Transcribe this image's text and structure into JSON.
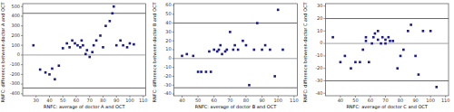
{
  "chart_data": [
    {
      "type": "scatter",
      "xlabel": "RNFC: average of doctor A and OCT",
      "ylabel": "RNFC: difference between doctor A and OCT",
      "xlim": [
        20,
        112
      ],
      "ylim": [
        -420,
        530
      ],
      "xticks": [
        30,
        40,
        50,
        60,
        70,
        80,
        90,
        100,
        110
      ],
      "yticks": [
        -400,
        -300,
        -200,
        -100,
        0,
        100,
        200,
        300,
        400,
        500
      ],
      "hlines": [
        {
          "y": 0,
          "color": "#999999"
        },
        {
          "y": 430,
          "color": "#555555"
        },
        {
          "y": -340,
          "color": "#555555"
        }
      ],
      "series": [
        {
          "color": "#1a1a8c",
          "marker": "square",
          "x": [
            28,
            33,
            37,
            40,
            42,
            44,
            47,
            50,
            53,
            55,
            57,
            59,
            61,
            63,
            64,
            65,
            67,
            68,
            70,
            72,
            73,
            75,
            78,
            80,
            82,
            85,
            87,
            88,
            90,
            93,
            95,
            98,
            100,
            103
          ],
          "values": [
            100,
            -150,
            -180,
            -200,
            -140,
            -250,
            -110,
            70,
            120,
            80,
            150,
            120,
            100,
            80,
            150,
            100,
            10,
            50,
            -20,
            30,
            100,
            150,
            200,
            80,
            300,
            350,
            430,
            500,
            100,
            150,
            100,
            80,
            120,
            110
          ]
        }
      ]
    },
    {
      "type": "scatter",
      "xlabel": "RNFC: average of doctor B and OCT",
      "ylabel": "RNFC: difference between doctor B and OCT",
      "xlim": [
        35,
        112
      ],
      "ylim": [
        -42,
        62
      ],
      "xticks": [
        40,
        50,
        60,
        70,
        80,
        90,
        100,
        110
      ],
      "yticks": [
        -40,
        -30,
        -20,
        -10,
        0,
        10,
        20,
        30,
        40,
        50,
        60
      ],
      "hlines": [
        {
          "y": 0,
          "color": "#999999"
        },
        {
          "y": 40,
          "color": "#555555"
        },
        {
          "y": -33,
          "color": "#555555"
        }
      ],
      "series": [
        {
          "color": "#1a1a8c",
          "marker": "square",
          "x": [
            40,
            43,
            47,
            50,
            52,
            55,
            57,
            58,
            60,
            62,
            63,
            64,
            65,
            67,
            68,
            70,
            72,
            73,
            75,
            78,
            80,
            82,
            85,
            87,
            90,
            92,
            95,
            98,
            100,
            103
          ],
          "values": [
            3,
            5,
            3,
            -15,
            -15,
            -15,
            8,
            -15,
            10,
            8,
            10,
            15,
            5,
            8,
            10,
            30,
            10,
            15,
            10,
            20,
            15,
            -30,
            10,
            40,
            10,
            15,
            10,
            -20,
            55,
            10
          ]
        }
      ]
    },
    {
      "type": "scatter",
      "xlabel": "RNFC: average of doctor C and OCT",
      "ylabel": "RNFC: difference between doctor C and OCT",
      "xlim": [
        30,
        112
      ],
      "ylim": [
        -42,
        32
      ],
      "xticks": [
        40,
        50,
        60,
        70,
        80,
        90,
        100,
        110
      ],
      "yticks": [
        -40,
        -30,
        -20,
        -10,
        0,
        10,
        20,
        30
      ],
      "hlines": [
        {
          "y": 0,
          "color": "#999999"
        },
        {
          "y": 20,
          "color": "#555555"
        },
        {
          "y": -30,
          "color": "#555555"
        }
      ],
      "series": [
        {
          "color": "#1a1a8c",
          "marker": "square",
          "x": [
            35,
            40,
            43,
            47,
            50,
            53,
            55,
            57,
            57,
            59,
            61,
            62,
            63,
            65,
            65,
            67,
            68,
            70,
            70,
            72,
            73,
            75,
            78,
            80,
            82,
            85,
            87,
            90,
            92,
            95,
            100,
            104
          ],
          "values": [
            5,
            -15,
            -10,
            -20,
            -15,
            -15,
            -5,
            2,
            5,
            -15,
            0,
            5,
            8,
            10,
            3,
            0,
            5,
            0,
            3,
            5,
            2,
            2,
            -20,
            -10,
            -5,
            10,
            15,
            -10,
            -25,
            10,
            10,
            -35
          ]
        }
      ]
    }
  ]
}
